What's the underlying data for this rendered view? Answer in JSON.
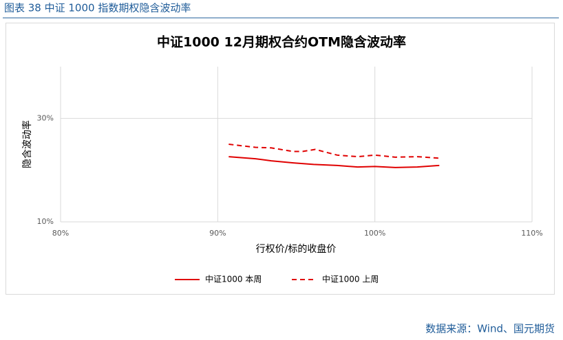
{
  "caption": "图表 38  中证 1000 指数期权隐含波动率",
  "source": "数据来源：Wind、国元期货",
  "chart_data": {
    "type": "line",
    "title": "中证1000 12月期权合约OTM隐含波动率",
    "x_label": "行权价/标的收盘价",
    "y_label": "隐含波动率",
    "xlim": [
      80,
      110
    ],
    "xticks": [
      {
        "value": 80,
        "label": "80%"
      },
      {
        "value": 90,
        "label": "90%"
      },
      {
        "value": 100,
        "label": "100%"
      },
      {
        "value": 110,
        "label": "110%"
      }
    ],
    "ylim": [
      10,
      40
    ],
    "yticks": [
      {
        "value": 10,
        "label": "10%"
      },
      {
        "value": 30,
        "label": "30%"
      }
    ],
    "grid": true,
    "legend": "bottom",
    "series": [
      {
        "name": "中证1000 本周",
        "color": "#e00000",
        "dash": false,
        "x": [
          90.7,
          92.4,
          93.4,
          94.8,
          96.1,
          97.6,
          98.9,
          100.0,
          101.3,
          102.7,
          104.1
        ],
        "values": [
          22.6,
          22.2,
          21.8,
          21.4,
          21.1,
          20.9,
          20.6,
          20.7,
          20.5,
          20.6,
          20.9
        ]
      },
      {
        "name": "中证1000 上周",
        "color": "#e00000",
        "dash": true,
        "x": [
          90.7,
          92.4,
          93.4,
          94.8,
          95.4,
          96.2,
          97.6,
          98.9,
          100.0,
          101.3,
          102.7,
          104.1
        ],
        "values": [
          25.0,
          24.4,
          24.3,
          23.6,
          23.6,
          24.0,
          22.9,
          22.6,
          22.9,
          22.5,
          22.6,
          22.3
        ]
      }
    ]
  }
}
